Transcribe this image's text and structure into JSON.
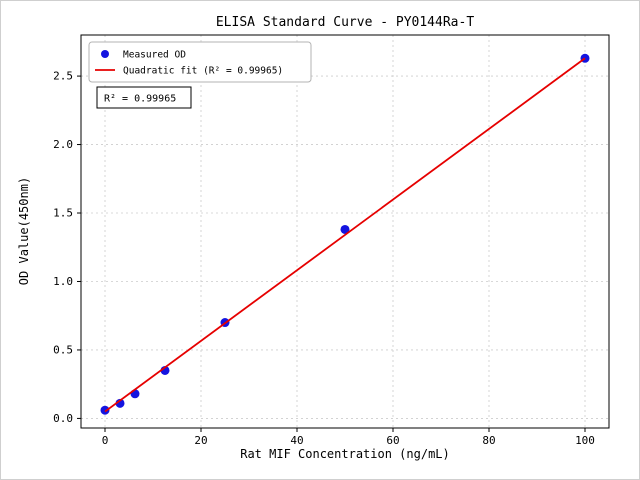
{
  "figure": {
    "background": "#ffffff"
  },
  "chart_data": {
    "type": "scatter",
    "title": "ELISA Standard Curve - PY0144Ra-T",
    "xlabel": "Rat MIF Concentration (ng/mL)",
    "ylabel": "OD Value(450nm)",
    "xlim": [
      -5,
      105
    ],
    "ylim": [
      -0.07,
      2.8
    ],
    "x_ticks": [
      0,
      20,
      40,
      60,
      80,
      100
    ],
    "x_tick_labels": [
      "0",
      "20",
      "40",
      "60",
      "80",
      "100"
    ],
    "y_ticks": [
      0.0,
      0.5,
      1.0,
      1.5,
      2.0,
      2.5
    ],
    "y_tick_labels": [
      "0.0",
      "0.5",
      "1.0",
      "1.5",
      "2.0",
      "2.5"
    ],
    "grid": true,
    "legend_position": "upper left",
    "series": [
      {
        "name": "Measured OD",
        "kind": "scatter",
        "color": "#1414e0",
        "x": [
          0,
          3.125,
          6.25,
          12.5,
          25,
          50,
          100
        ],
        "y": [
          0.06,
          0.11,
          0.18,
          0.35,
          0.7,
          1.38,
          2.63
        ]
      },
      {
        "name": "Quadratic fit (R² = 0.99965)",
        "kind": "line",
        "color": "#e60000",
        "x": [
          0,
          100
        ],
        "y": [
          0.05,
          2.63
        ]
      }
    ],
    "annotation": "R² = 0.99965"
  }
}
